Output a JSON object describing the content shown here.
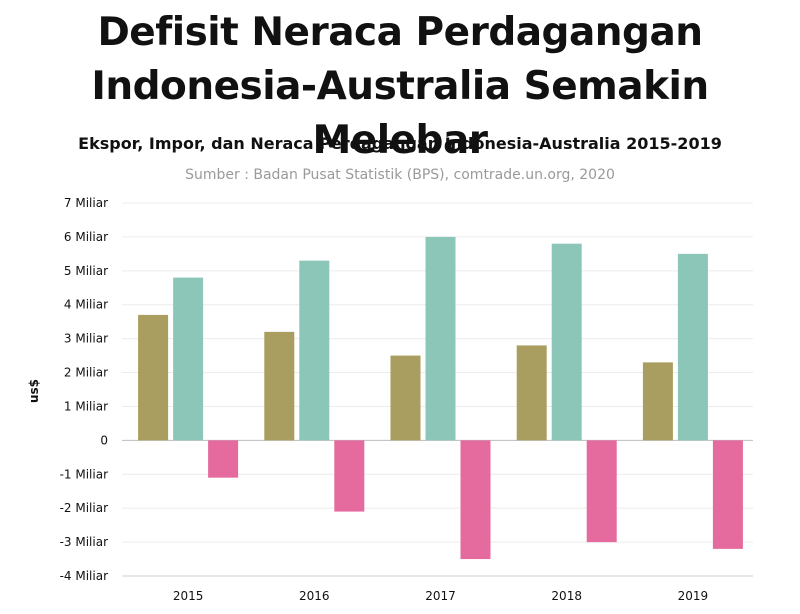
{
  "headline": [
    "Defisit Neraca Perdagangan",
    "Indonesia-Australia Semakin Melebar"
  ],
  "chart_data": {
    "type": "bar",
    "title": "Ekspor, Impor, dan Neraca Perdagangan Indonesia-Australia 2015-2019",
    "source": "Sumber : Badan Pusat Statistik (BPS), comtrade.un.org, 2020",
    "ylabel": "us$",
    "categories": [
      "2015",
      "2016",
      "2017",
      "2018",
      "2019"
    ],
    "ylim": [
      -4,
      7
    ],
    "yticks": [
      {
        "value": 7,
        "label": "7 Miliar"
      },
      {
        "value": 6,
        "label": "6 Miliar"
      },
      {
        "value": 5,
        "label": "5 Miliar"
      },
      {
        "value": 4,
        "label": "4 Miliar"
      },
      {
        "value": 3,
        "label": "3 Miliar"
      },
      {
        "value": 2,
        "label": "2 Miliar"
      },
      {
        "value": 1,
        "label": "1 Miliar"
      },
      {
        "value": 0,
        "label": "0"
      },
      {
        "value": -1,
        "label": "-1 Miliar"
      },
      {
        "value": -2,
        "label": "-2 Miliar"
      },
      {
        "value": -3,
        "label": "-3 Miliar"
      },
      {
        "value": -4,
        "label": "-4 Miliar"
      }
    ],
    "grid": true,
    "series": [
      {
        "color": "#a99d5f",
        "values": [
          3.7,
          3.2,
          2.5,
          2.8,
          2.3
        ]
      },
      {
        "color": "#8cc6b8",
        "values": [
          4.8,
          5.3,
          6.0,
          5.8,
          5.5
        ]
      },
      {
        "color": "#e56a9d",
        "values": [
          -1.1,
          -2.1,
          -3.5,
          -3.0,
          -3.2
        ]
      }
    ]
  }
}
